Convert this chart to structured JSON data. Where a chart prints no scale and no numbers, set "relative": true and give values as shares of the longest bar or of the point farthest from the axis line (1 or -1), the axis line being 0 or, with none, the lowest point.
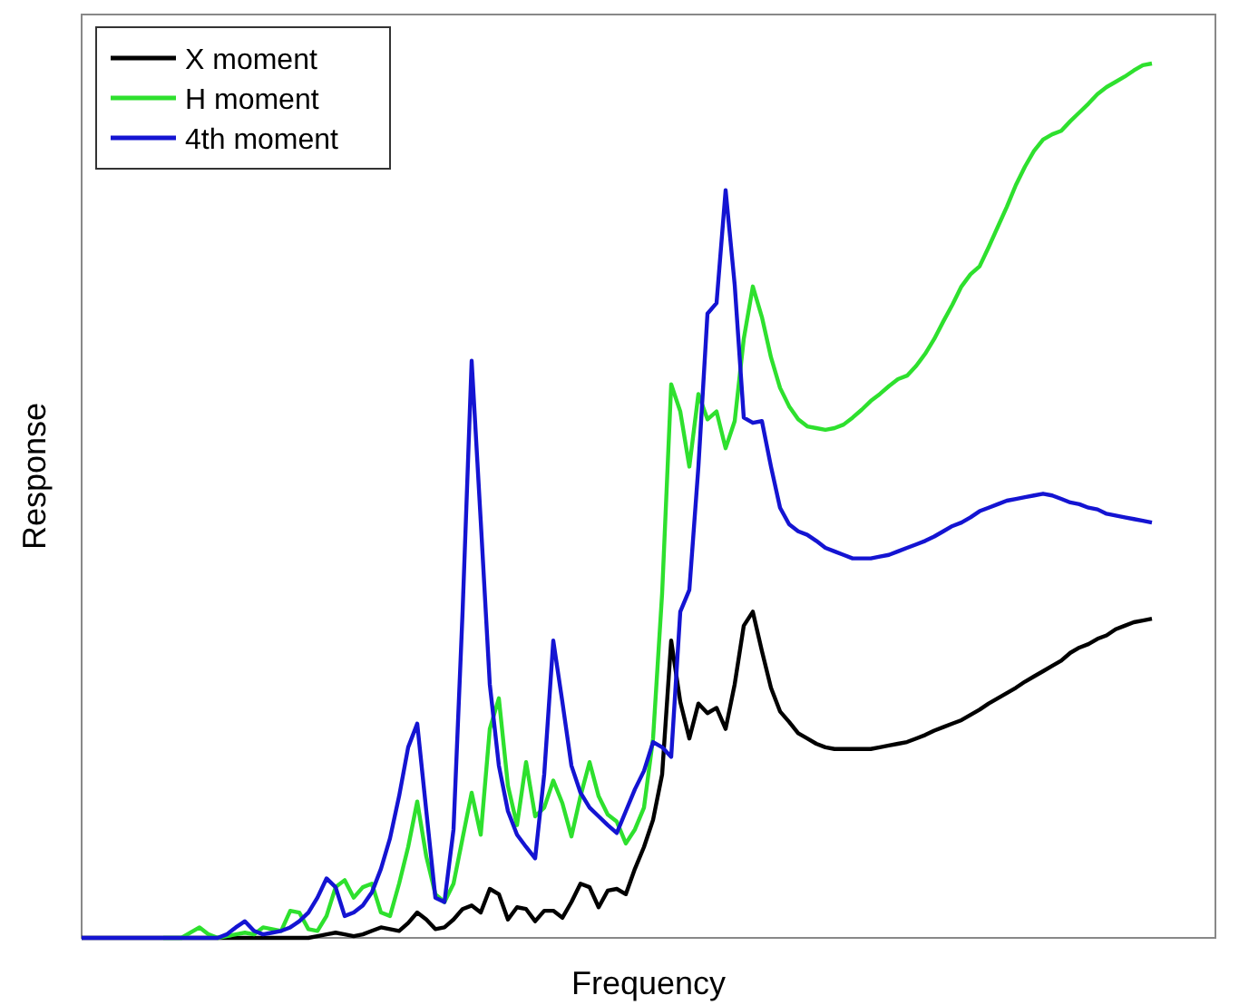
{
  "chart_data": {
    "type": "line",
    "relative": true,
    "xlabel": "Frequency",
    "ylabel": "Response",
    "legend": "top left",
    "categories": [
      null,
      null,
      null,
      null,
      null,
      null,
      null,
      null,
      null,
      null,
      null,
      null,
      null,
      null,
      null,
      null,
      null,
      null,
      null,
      null,
      null,
      null,
      null,
      null,
      null,
      null,
      null,
      null,
      null,
      null,
      null,
      null,
      null,
      null,
      null,
      null,
      null,
      null,
      null,
      null,
      null,
      null,
      null,
      null,
      null,
      null,
      null,
      null,
      null,
      null,
      null,
      null,
      null,
      null,
      null,
      null,
      null,
      null,
      null,
      null,
      null,
      null,
      null,
      null,
      null,
      null,
      null,
      null,
      null,
      null,
      null,
      null,
      null,
      null,
      null,
      null,
      null,
      null,
      null,
      null,
      null,
      null,
      null,
      null,
      null,
      null,
      null,
      null,
      null,
      null,
      null,
      null,
      null,
      null,
      null,
      null,
      null,
      null,
      null,
      null,
      null,
      null,
      null,
      null,
      null,
      null,
      null,
      null,
      null,
      null,
      null,
      null,
      null,
      null,
      null,
      null,
      null,
      null,
      null
    ],
    "series": [
      {
        "name": "X moment",
        "color": "#000000",
        "values": [
          0,
          0,
          0,
          0,
          0,
          0,
          0,
          0,
          0,
          0,
          0,
          0,
          0,
          0,
          0,
          0,
          0,
          0,
          0,
          0,
          0,
          0,
          0,
          0,
          0,
          0,
          0.002,
          0.004,
          0.006,
          0.004,
          0.002,
          0.004,
          0.008,
          0.012,
          0.01,
          0.008,
          0.017,
          0.029,
          0.021,
          0.01,
          0.012,
          0.021,
          0.033,
          0.037,
          0.029,
          0.056,
          0.05,
          0.021,
          0.035,
          0.033,
          0.019,
          0.031,
          0.031,
          0.023,
          0.041,
          0.062,
          0.058,
          0.035,
          0.054,
          0.056,
          0.05,
          0.079,
          0.104,
          0.135,
          0.187,
          0.34,
          0.27,
          0.228,
          0.268,
          0.257,
          0.263,
          0.239,
          0.29,
          0.357,
          0.373,
          0.328,
          0.286,
          0.259,
          0.247,
          0.234,
          0.228,
          0.222,
          0.218,
          0.216,
          0.216,
          0.216,
          0.216,
          0.216,
          0.218,
          0.22,
          0.222,
          0.224,
          0.228,
          0.232,
          0.237,
          0.241,
          0.245,
          0.249,
          0.255,
          0.261,
          0.268,
          0.274,
          0.28,
          0.286,
          0.293,
          0.299,
          0.305,
          0.311,
          0.317,
          0.326,
          0.332,
          0.336,
          0.342,
          0.346,
          0.353,
          0.357,
          0.361,
          0.363,
          0.365
        ]
      },
      {
        "name": "H moment",
        "color": "#2ee02e",
        "values": [
          null,
          null,
          null,
          null,
          null,
          null,
          null,
          null,
          null,
          0,
          0,
          0,
          0.006,
          0.012,
          0.004,
          0,
          0.002,
          0.004,
          0.006,
          0.004,
          0.012,
          0.01,
          0.008,
          0.031,
          0.029,
          0.01,
          0.008,
          0.025,
          0.058,
          0.066,
          0.046,
          0.058,
          0.062,
          0.029,
          0.025,
          0.062,
          0.104,
          0.156,
          0.093,
          0.05,
          0.041,
          0.062,
          0.114,
          0.166,
          0.118,
          0.239,
          0.274,
          0.174,
          0.129,
          0.201,
          0.139,
          0.149,
          0.18,
          0.154,
          0.116,
          0.162,
          0.201,
          0.162,
          0.141,
          0.133,
          0.108,
          0.124,
          0.149,
          0.228,
          0.394,
          0.633,
          0.602,
          0.539,
          0.622,
          0.593,
          0.602,
          0.56,
          0.591,
          0.685,
          0.745,
          0.71,
          0.664,
          0.629,
          0.608,
          0.593,
          0.585,
          0.583,
          0.581,
          0.583,
          0.587,
          0.595,
          0.604,
          0.614,
          0.622,
          0.631,
          0.639,
          0.643,
          0.654,
          0.668,
          0.685,
          0.705,
          0.724,
          0.745,
          0.759,
          0.768,
          0.79,
          0.813,
          0.836,
          0.861,
          0.882,
          0.9,
          0.913,
          0.919,
          0.923,
          0.934,
          0.944,
          0.954,
          0.965,
          0.973,
          0.979,
          0.985,
          0.992,
          0.998,
          1
        ]
      },
      {
        "name": "4th moment",
        "color": "#1414d2",
        "values": [
          0,
          0,
          0,
          0,
          0,
          0,
          0,
          0,
          0,
          0,
          0,
          0,
          0,
          0,
          0,
          0,
          0.004,
          0.012,
          0.019,
          0.008,
          0.004,
          0.006,
          0.008,
          0.012,
          0.019,
          0.029,
          0.046,
          0.068,
          0.058,
          0.025,
          0.029,
          0.037,
          0.052,
          0.079,
          0.114,
          0.162,
          0.218,
          0.245,
          0.145,
          0.046,
          0.041,
          0.124,
          0.373,
          0.66,
          0.477,
          0.29,
          0.197,
          0.145,
          0.118,
          0.104,
          0.091,
          0.187,
          0.34,
          0.27,
          0.197,
          0.166,
          0.149,
          0.139,
          0.129,
          0.12,
          0.145,
          0.17,
          0.191,
          0.224,
          0.218,
          0.207,
          0.373,
          0.398,
          0.539,
          0.714,
          0.726,
          0.855,
          0.747,
          0.595,
          0.589,
          0.591,
          0.539,
          0.492,
          0.473,
          0.465,
          0.461,
          0.454,
          0.446,
          0.442,
          0.438,
          0.434,
          0.434,
          0.434,
          0.436,
          0.438,
          0.442,
          0.446,
          0.45,
          0.454,
          0.459,
          0.465,
          0.471,
          0.475,
          0.481,
          0.488,
          0.492,
          0.496,
          0.5,
          0.502,
          0.504,
          0.506,
          0.508,
          0.506,
          0.502,
          0.498,
          0.496,
          0.492,
          0.49,
          0.485,
          0.483,
          0.481,
          0.479,
          0.477,
          0.475
        ]
      }
    ]
  }
}
